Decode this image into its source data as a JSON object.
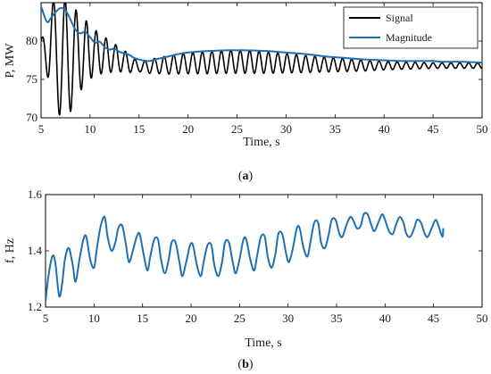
{
  "chart_data": [
    {
      "type": "line",
      "caption_open": "(",
      "caption_letter": "a",
      "caption_close": ")",
      "xlabel": "Time, s",
      "ylabel": "P, MW",
      "xlim": [
        5,
        50
      ],
      "ylim": [
        70,
        85
      ],
      "xticks": [
        5,
        10,
        15,
        20,
        25,
        30,
        35,
        40,
        45,
        50
      ],
      "yticks": [
        70,
        75,
        80
      ],
      "grid": false,
      "legend_position": "top-right",
      "series": [
        {
          "name": "Signal",
          "color": "#000000",
          "model": {
            "x_start": 5,
            "x_end": 50,
            "envelope_x": [
              5,
              6,
              7,
              7.3,
              8,
              9,
              10,
              11,
              12,
              13,
              14,
              15,
              16,
              18,
              20,
              22,
              24,
              26,
              28,
              30,
              32,
              35,
              38,
              40,
              45,
              50
            ],
            "center_y": [
              80,
              79,
              78,
              77.5,
              77.8,
              78.5,
              78.6,
              78.3,
              78.0,
              77.6,
              77.1,
              76.6,
              76.7,
              76.9,
              77.1,
              77.2,
              77.3,
              77.3,
              77.2,
              77.1,
              77.0,
              76.9,
              76.8,
              76.8,
              76.8,
              76.8
            ],
            "amplitude": [
              0,
              6,
              8,
              8.2,
              7,
              5,
              3.5,
              2.6,
              2.1,
              1.6,
              1.2,
              0.6,
              0.9,
              1.2,
              1.35,
              1.45,
              1.5,
              1.5,
              1.4,
              1.25,
              1.1,
              0.9,
              0.7,
              0.55,
              0.35,
              0.35
            ],
            "period_x": [
              5,
              10,
              50
            ],
            "period": [
              1.3,
              1.0,
              0.9
            ]
          }
        },
        {
          "name": "Magnitude",
          "color": "#1f6fb2",
          "x": [
            5,
            5.6,
            6,
            6.5,
            7,
            7.5,
            8,
            8.5,
            9,
            9.5,
            10,
            10.5,
            11,
            11.5,
            12,
            12.5,
            13,
            13.5,
            14,
            14.5,
            15,
            16,
            17,
            18,
            19,
            20,
            22,
            24,
            25,
            26,
            28,
            30,
            32,
            34,
            35,
            36,
            38,
            40,
            42,
            44,
            45,
            46,
            48,
            50
          ],
          "y": [
            84.5,
            82.5,
            83.0,
            83.8,
            84.3,
            84.0,
            82.8,
            81.5,
            81.0,
            81.2,
            80.5,
            79.8,
            79.9,
            79.2,
            78.9,
            79.0,
            78.6,
            78.4,
            78.2,
            77.8,
            77.6,
            77.4,
            77.7,
            78.0,
            78.3,
            78.5,
            78.7,
            78.8,
            78.8,
            78.8,
            78.7,
            78.5,
            78.3,
            78.0,
            77.9,
            77.8,
            77.6,
            77.5,
            77.4,
            77.4,
            77.4,
            77.3,
            77.3,
            77.2
          ]
        }
      ]
    },
    {
      "type": "line",
      "caption_open": "(",
      "caption_letter": "b",
      "caption_close": ")",
      "xlabel": "Time, s",
      "ylabel": "f, Hz",
      "xlim": [
        5,
        50
      ],
      "ylim": [
        1.2,
        1.6
      ],
      "xticks": [
        5,
        10,
        15,
        20,
        25,
        30,
        35,
        40,
        45,
        50
      ],
      "yticks": [
        1.2,
        1.4,
        1.6
      ],
      "grid": false,
      "series": [
        {
          "name": "",
          "color": "#1f6fb2",
          "x": [
            5.0,
            5.3,
            5.7,
            6.0,
            6.4,
            6.7,
            7.0,
            7.4,
            7.8,
            8.1,
            8.5,
            8.9,
            9.2,
            9.6,
            10.0,
            10.3,
            10.7,
            11.1,
            11.4,
            11.8,
            12.2,
            12.5,
            12.9,
            13.3,
            13.6,
            14.0,
            14.4,
            14.7,
            15.1,
            15.5,
            15.8,
            16.2,
            16.6,
            16.9,
            17.3,
            17.7,
            18.0,
            18.4,
            18.8,
            19.1,
            19.5,
            19.9,
            20.2,
            20.6,
            21.0,
            21.3,
            21.7,
            22.1,
            22.4,
            22.8,
            23.2,
            23.5,
            23.9,
            24.3,
            24.6,
            25.0,
            25.4,
            25.7,
            26.1,
            26.5,
            26.8,
            27.2,
            27.6,
            27.9,
            28.3,
            28.7,
            29.0,
            29.4,
            29.8,
            30.1,
            30.5,
            30.9,
            31.2,
            31.6,
            32.0,
            32.3,
            32.7,
            33.1,
            33.4,
            33.8,
            34.2,
            34.5,
            34.9,
            35.3,
            35.6,
            36.0,
            36.4,
            36.7,
            37.1,
            37.5,
            37.8,
            38.2,
            38.6,
            38.9,
            39.3,
            39.7,
            40.0,
            40.4,
            40.8,
            41.1,
            41.5,
            41.9,
            42.2,
            42.6,
            43.0,
            43.3,
            43.7,
            44.1,
            44.4,
            44.8,
            45.2,
            45.5,
            45.9,
            46.0
          ],
          "y": [
            1.22,
            1.31,
            1.38,
            1.36,
            1.24,
            1.28,
            1.37,
            1.41,
            1.35,
            1.29,
            1.37,
            1.44,
            1.45,
            1.37,
            1.34,
            1.41,
            1.49,
            1.52,
            1.45,
            1.4,
            1.43,
            1.48,
            1.49,
            1.42,
            1.36,
            1.4,
            1.45,
            1.46,
            1.39,
            1.33,
            1.38,
            1.44,
            1.44,
            1.37,
            1.32,
            1.37,
            1.43,
            1.43,
            1.36,
            1.31,
            1.36,
            1.42,
            1.42,
            1.35,
            1.31,
            1.36,
            1.42,
            1.42,
            1.35,
            1.31,
            1.36,
            1.43,
            1.43,
            1.36,
            1.32,
            1.37,
            1.44,
            1.44,
            1.37,
            1.33,
            1.38,
            1.45,
            1.45,
            1.38,
            1.34,
            1.39,
            1.46,
            1.46,
            1.39,
            1.36,
            1.41,
            1.48,
            1.48,
            1.41,
            1.38,
            1.43,
            1.5,
            1.5,
            1.43,
            1.41,
            1.46,
            1.51,
            1.51,
            1.46,
            1.45,
            1.49,
            1.52,
            1.51,
            1.48,
            1.49,
            1.53,
            1.53,
            1.49,
            1.47,
            1.5,
            1.53,
            1.51,
            1.47,
            1.46,
            1.49,
            1.52,
            1.5,
            1.46,
            1.45,
            1.48,
            1.51,
            1.5,
            1.46,
            1.45,
            1.48,
            1.51,
            1.49,
            1.45,
            1.48
          ]
        }
      ]
    }
  ]
}
